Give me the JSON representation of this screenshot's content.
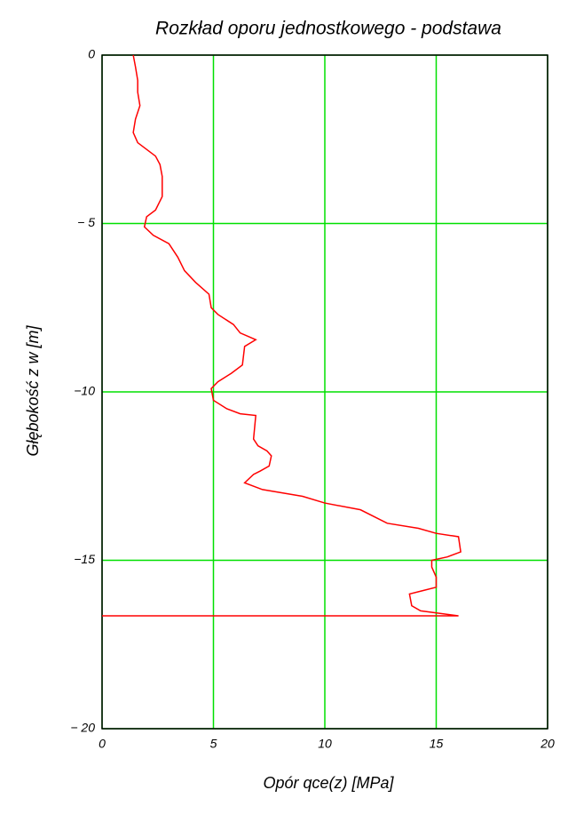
{
  "chart_data": {
    "type": "line",
    "title": "Rozkład oporu jednostkowego - podstawa",
    "xlabel": "Opór qce(z) [MPa]",
    "ylabel": "Głębokość z w  [m]",
    "xlim": [
      0,
      20
    ],
    "ylim": [
      -20,
      0
    ],
    "xticks": [
      0,
      5,
      10,
      15,
      20
    ],
    "yticks": [
      0,
      {
        "value": -5,
        "label": "− 5"
      },
      {
        "value": -10,
        "label": "−10"
      },
      {
        "value": -15,
        "label": "−15"
      },
      {
        "value": -20,
        "label": "− 20"
      }
    ],
    "grid": true,
    "grid_color": "#00e000",
    "series": [
      {
        "color": "#ff0000",
        "x": [
          1.4,
          1.5,
          1.6,
          1.6,
          1.7,
          1.5,
          1.4,
          1.6,
          2.4,
          2.6,
          2.7,
          2.7,
          2.4,
          2.0,
          1.9,
          2.3,
          3.0,
          3.4,
          3.7,
          4.2,
          4.8,
          4.9,
          5.2,
          5.9,
          6.2,
          6.9,
          6.4,
          6.3,
          5.8,
          5.2,
          4.9,
          5.0,
          5.6,
          6.2,
          6.9,
          6.8,
          7.0,
          7.4,
          7.6,
          7.5,
          7.1,
          6.8,
          6.4,
          7.2,
          9.0,
          10.0,
          11.6,
          12.8,
          14.2,
          15.0,
          16.0,
          16.1,
          15.5,
          14.8,
          14.8,
          15.0,
          15.0,
          14.4,
          13.8,
          13.9,
          14.3,
          16.0,
          0
        ],
        "values": [
          0,
          -0.35,
          -0.75,
          -1.1,
          -1.5,
          -1.9,
          -2.3,
          -2.6,
          -3.0,
          -3.25,
          -3.6,
          -4.2,
          -4.6,
          -4.8,
          -5.1,
          -5.35,
          -5.6,
          -6.0,
          -6.4,
          -6.75,
          -7.1,
          -7.5,
          -7.7,
          -8.0,
          -8.25,
          -8.45,
          -8.65,
          -9.2,
          -9.45,
          -9.7,
          -9.9,
          -10.25,
          -10.5,
          -10.65,
          -10.7,
          -11.4,
          -11.6,
          -11.75,
          -11.9,
          -12.2,
          -12.35,
          -12.45,
          -12.7,
          -12.9,
          -13.1,
          -13.3,
          -13.5,
          -13.9,
          -14.05,
          -14.2,
          -14.3,
          -14.75,
          -14.9,
          -15.0,
          -15.2,
          -15.5,
          -15.8,
          -15.9,
          -16.0,
          -16.35,
          -16.5,
          -16.65,
          -16.65
        ]
      }
    ]
  }
}
